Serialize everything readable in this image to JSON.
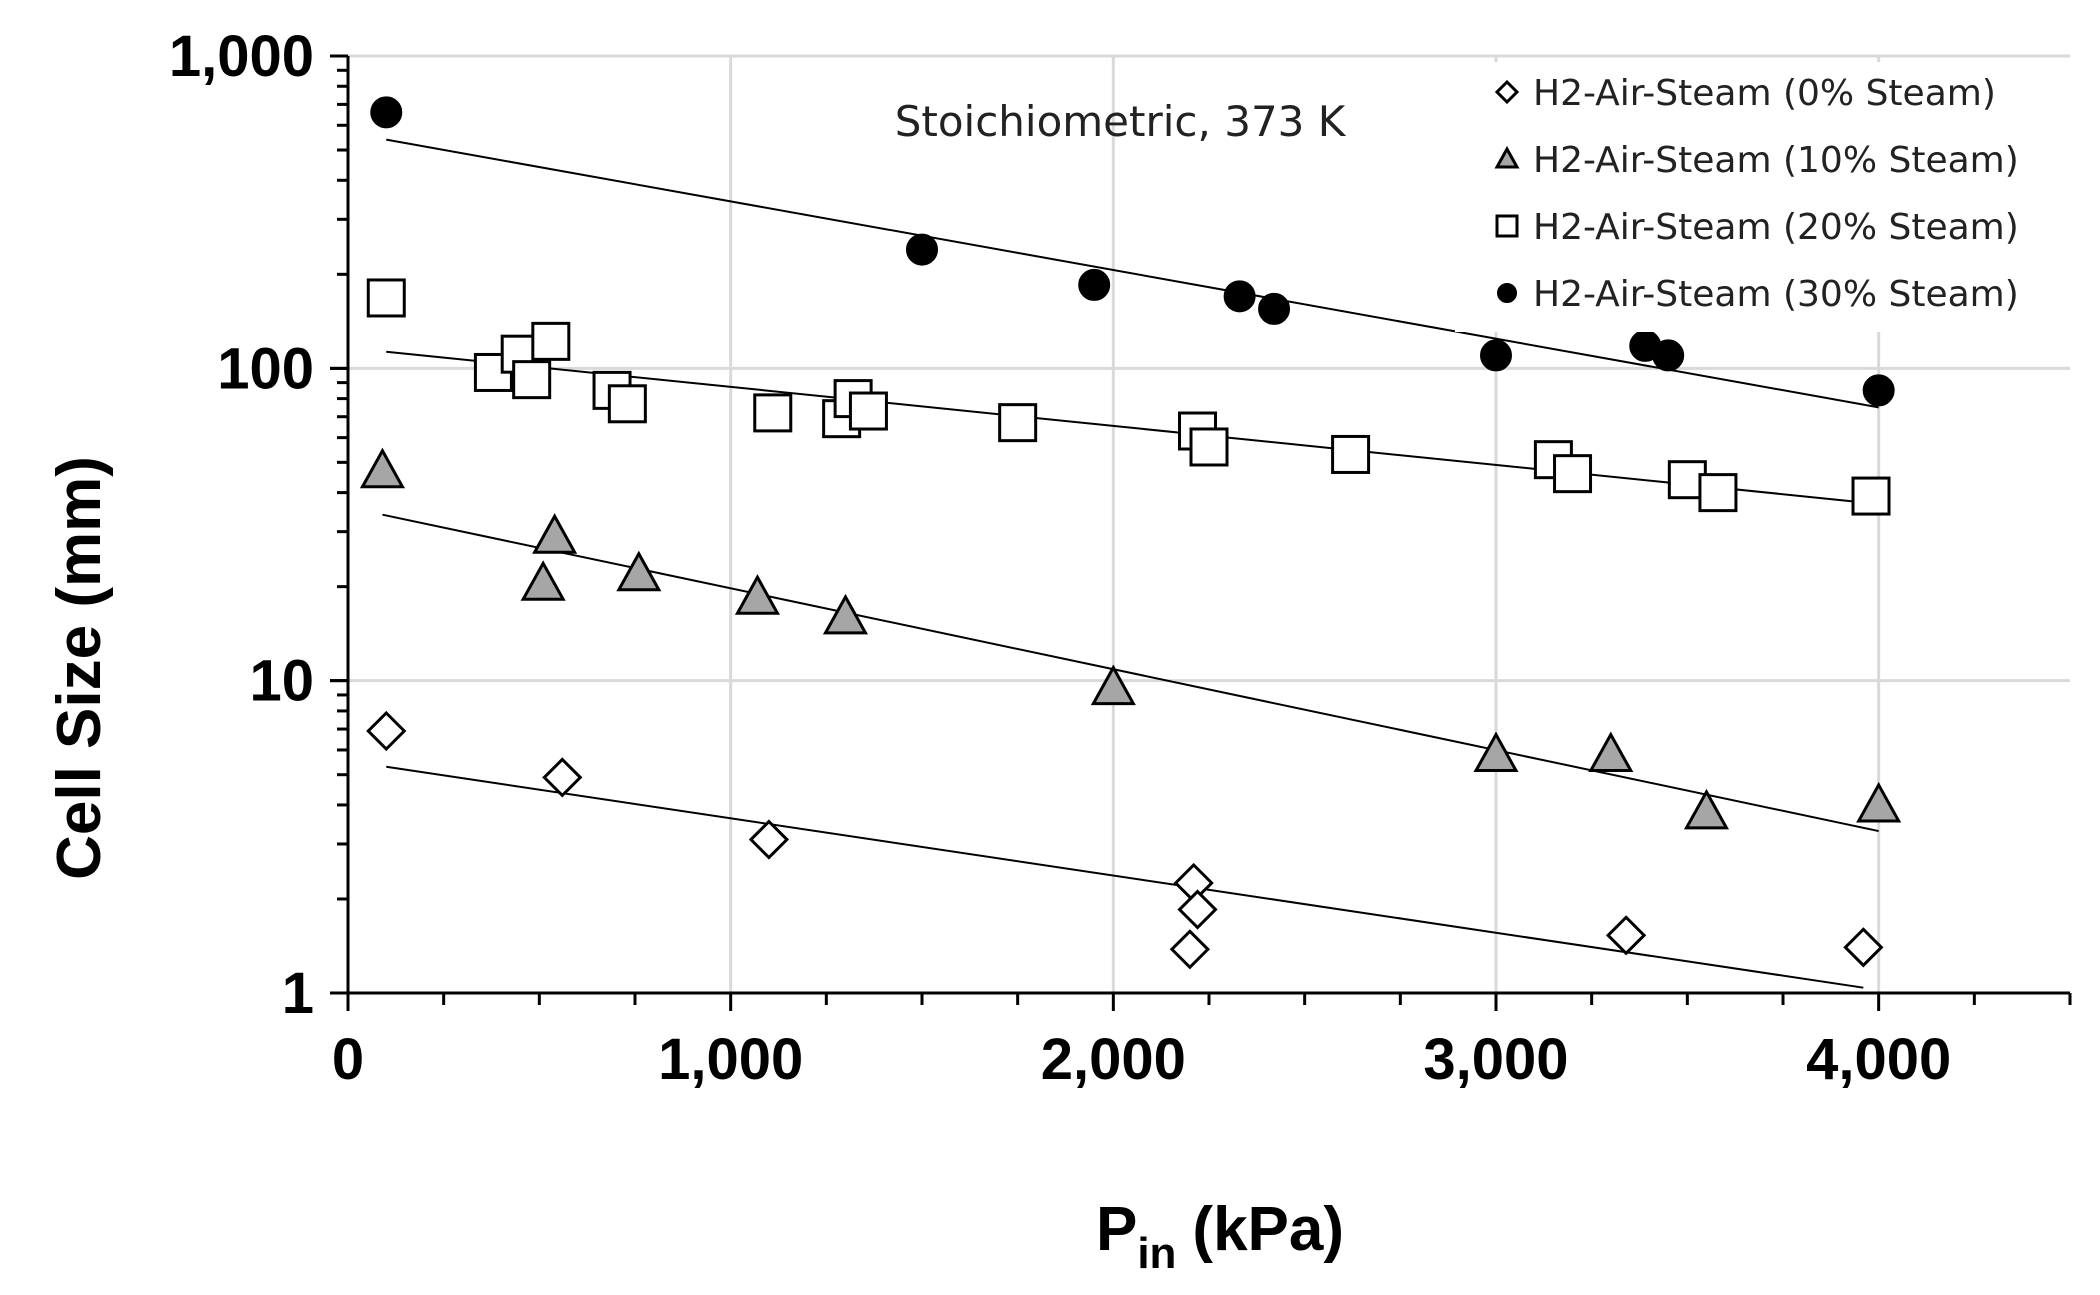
{
  "chart_data": {
    "type": "scatter",
    "title": "",
    "annotation": "Stoichiometric, 373 K",
    "xlabel_main": "P",
    "xlabel_sub": "in",
    "xlabel_unit": "(kPa)",
    "ylabel": "Cell Size (mm)",
    "x_scale": "linear",
    "y_scale": "log",
    "xlim": [
      0,
      4500
    ],
    "ylim": [
      1,
      1000
    ],
    "x_ticks": [
      {
        "value": 0,
        "label": "0"
      },
      {
        "value": 1000,
        "label": "1,000"
      },
      {
        "value": 2000,
        "label": "2,000"
      },
      {
        "value": 3000,
        "label": "3,000"
      },
      {
        "value": 4000,
        "label": "4,000"
      }
    ],
    "y_ticks": [
      {
        "value": 1,
        "label": "1"
      },
      {
        "value": 10,
        "label": "10"
      },
      {
        "value": 100,
        "label": "100"
      },
      {
        "value": 1000,
        "label": "1,000"
      }
    ],
    "grid": true,
    "legend_position": "top-right",
    "series": [
      {
        "name": "H2-Air-Steam (0% Steam)",
        "marker": "diamond",
        "fill": "#ffffff",
        "x": [
          100,
          560,
          1100,
          2210,
          2220,
          2200,
          3340,
          3960
        ],
        "y": [
          6.9,
          4.9,
          3.1,
          2.25,
          1.85,
          1.38,
          1.53,
          1.4
        ],
        "fit": {
          "x": [
            100,
            3960
          ],
          "y": [
            5.3,
            1.04
          ]
        }
      },
      {
        "name": "H2-Air-Steam (10% Steam)",
        "marker": "triangle",
        "fill": "#a6a6a6",
        "x": [
          90,
          540,
          510,
          760,
          1070,
          1300,
          2000,
          3000,
          3300,
          3550,
          4000
        ],
        "y": [
          47,
          29,
          20.5,
          22,
          18.5,
          16,
          9.5,
          5.8,
          5.8,
          3.8,
          4.0
        ],
        "fit": {
          "x": [
            90,
            4000
          ],
          "y": [
            34,
            3.3
          ]
        }
      },
      {
        "name": "H2-Air-Steam (20% Steam)",
        "marker": "square",
        "fill": "#ffffff",
        "x": [
          100,
          380,
          450,
          480,
          530,
          690,
          730,
          1110,
          1290,
          1320,
          1360,
          1750,
          2220,
          2250,
          2620,
          3150,
          3200,
          3500,
          3580,
          3980
        ],
        "y": [
          168,
          97,
          111,
          92,
          122,
          85,
          77,
          72,
          69,
          80,
          73,
          67,
          63,
          56,
          53,
          51,
          46,
          44,
          40,
          39
        ],
        "fit": {
          "x": [
            100,
            3980
          ],
          "y": [
            113,
            37
          ]
        }
      },
      {
        "name": "H2-Air-Steam (30% Steam)",
        "marker": "circle",
        "fill": "#000000",
        "x": [
          100,
          1500,
          1950,
          2330,
          2420,
          3000,
          3390,
          3450,
          4000
        ],
        "y": [
          660,
          240,
          185,
          170,
          155,
          110,
          118,
          110,
          85
        ],
        "fit": {
          "x": [
            100,
            4000
          ],
          "y": [
            540,
            75
          ]
        }
      }
    ]
  }
}
